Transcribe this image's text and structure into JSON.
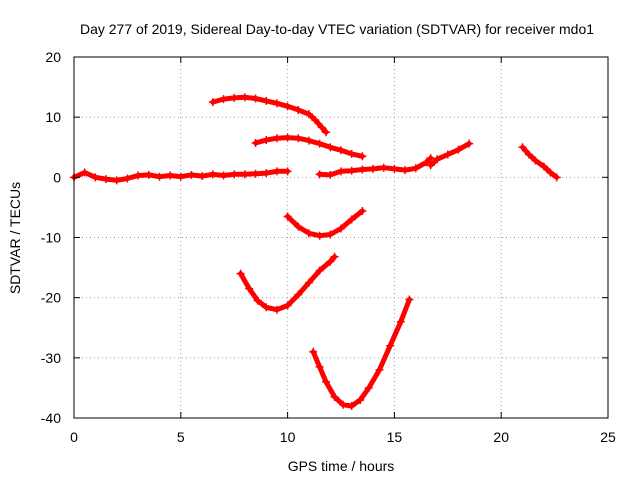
{
  "chart_data": {
    "type": "scatter",
    "title": "Day 277 of 2019, Sidereal Day-to-day VTEC variation (SDTVAR) for receiver mdo1",
    "xlabel": "GPS time / hours",
    "ylabel": "SDTVAR / TECUs",
    "xlim": [
      0,
      25
    ],
    "ylim": [
      -40,
      20
    ],
    "xticks": [
      "0",
      "5",
      "10",
      "15",
      "20",
      "25"
    ],
    "yticks": [
      "-40",
      "-30",
      "-20",
      "-10",
      "0",
      "10",
      "20"
    ],
    "grid": true,
    "color": "#ff0000",
    "series": [
      {
        "name": "arc-baseline-left",
        "points": [
          [
            0,
            0
          ],
          [
            0.5,
            0.8
          ],
          [
            1,
            0
          ],
          [
            1.5,
            -0.3
          ],
          [
            2,
            -0.5
          ],
          [
            2.5,
            -0.2
          ],
          [
            3,
            0.3
          ],
          [
            3.5,
            0.4
          ],
          [
            4,
            0.1
          ],
          [
            4.5,
            0.3
          ],
          [
            5,
            0.1
          ],
          [
            5.5,
            0.4
          ],
          [
            6,
            0.2
          ],
          [
            6.5,
            0.5
          ],
          [
            7,
            0.3
          ],
          [
            7.5,
            0.5
          ],
          [
            8,
            0.5
          ],
          [
            8.5,
            0.6
          ],
          [
            9,
            0.7
          ],
          [
            9.5,
            1.0
          ],
          [
            10,
            1.0
          ]
        ]
      },
      {
        "name": "arc-upper",
        "points": [
          [
            6.5,
            12.5
          ],
          [
            7,
            13
          ],
          [
            7.5,
            13.2
          ],
          [
            8,
            13.3
          ],
          [
            8.5,
            13.1
          ],
          [
            9,
            12.7
          ],
          [
            9.5,
            12.3
          ],
          [
            10,
            11.8
          ],
          [
            10.5,
            11.2
          ],
          [
            11,
            10.5
          ],
          [
            11.3,
            9.5
          ],
          [
            11.6,
            8.3
          ],
          [
            11.8,
            7.5
          ]
        ]
      },
      {
        "name": "arc-mid-upper",
        "points": [
          [
            8.5,
            5.7
          ],
          [
            9,
            6.2
          ],
          [
            9.5,
            6.5
          ],
          [
            10,
            6.6
          ],
          [
            10.5,
            6.5
          ],
          [
            11,
            6.1
          ],
          [
            11.5,
            5.6
          ],
          [
            12,
            5.0
          ],
          [
            12.5,
            4.5
          ],
          [
            13,
            3.9
          ],
          [
            13.5,
            3.5
          ]
        ]
      },
      {
        "name": "arc-baseline-right",
        "points": [
          [
            11.5,
            0.5
          ],
          [
            12,
            0.4
          ],
          [
            12.5,
            1.0
          ],
          [
            13,
            1.1
          ],
          [
            13.5,
            1.3
          ],
          [
            14,
            1.4
          ],
          [
            14.5,
            1.6
          ],
          [
            15,
            1.4
          ],
          [
            15.5,
            1.2
          ],
          [
            16,
            1.5
          ],
          [
            16.5,
            2.5
          ],
          [
            16.7,
            3.2
          ]
        ]
      },
      {
        "name": "arc-rising",
        "points": [
          [
            16.7,
            2.0
          ],
          [
            17,
            3.0
          ],
          [
            17.5,
            3.8
          ],
          [
            18,
            4.6
          ],
          [
            18.5,
            5.6
          ]
        ]
      },
      {
        "name": "arc-late",
        "points": [
          [
            21,
            5.0
          ],
          [
            21.3,
            3.8
          ],
          [
            21.6,
            2.8
          ],
          [
            22,
            1.8
          ],
          [
            22.3,
            0.8
          ],
          [
            22.6,
            0
          ]
        ]
      },
      {
        "name": "arc-dip-shallow",
        "points": [
          [
            10,
            -6.5
          ],
          [
            10.5,
            -8.2
          ],
          [
            11,
            -9.3
          ],
          [
            11.5,
            -9.7
          ],
          [
            12,
            -9.5
          ],
          [
            12.5,
            -8.5
          ],
          [
            13,
            -7.0
          ],
          [
            13.5,
            -5.6
          ]
        ]
      },
      {
        "name": "arc-dip-mid",
        "points": [
          [
            7.8,
            -16
          ],
          [
            8.2,
            -18.5
          ],
          [
            8.6,
            -20.5
          ],
          [
            9,
            -21.6
          ],
          [
            9.5,
            -22
          ],
          [
            10,
            -21.3
          ],
          [
            10.5,
            -19.5
          ],
          [
            11,
            -17.5
          ],
          [
            11.5,
            -15.5
          ],
          [
            12,
            -14
          ],
          [
            12.2,
            -13.2
          ]
        ]
      },
      {
        "name": "arc-dip-deep",
        "points": [
          [
            11.2,
            -29
          ],
          [
            11.5,
            -31.5
          ],
          [
            11.8,
            -34
          ],
          [
            12.2,
            -36.5
          ],
          [
            12.6,
            -37.8
          ],
          [
            13,
            -38
          ],
          [
            13.4,
            -37
          ],
          [
            13.8,
            -35
          ],
          [
            14.3,
            -32
          ],
          [
            14.8,
            -28
          ],
          [
            15.3,
            -24
          ],
          [
            15.7,
            -20.3
          ]
        ]
      }
    ]
  }
}
